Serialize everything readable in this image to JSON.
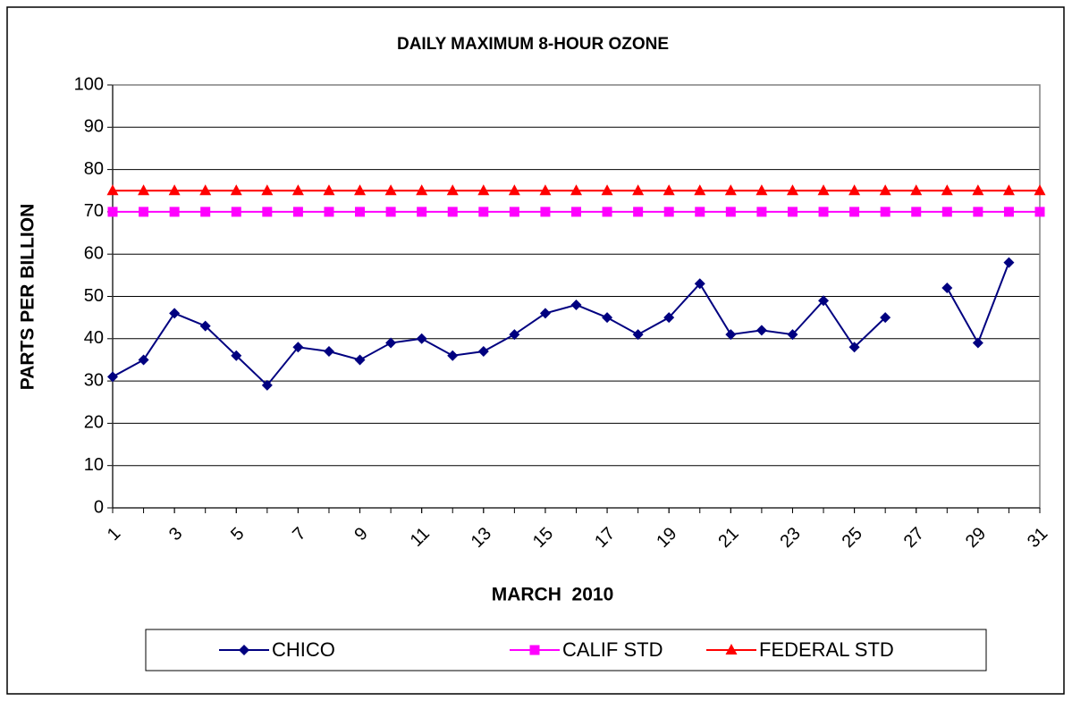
{
  "chart_data": {
    "type": "line",
    "title": "DAILY MAXIMUM 8-HOUR OZONE",
    "xlabel": "MARCH  2010",
    "ylabel": "PARTS PER BILLION",
    "x": [
      1,
      2,
      3,
      4,
      5,
      6,
      7,
      8,
      9,
      10,
      11,
      12,
      13,
      14,
      15,
      16,
      17,
      18,
      19,
      20,
      21,
      22,
      23,
      24,
      25,
      26,
      27,
      28,
      29,
      30,
      31
    ],
    "xlim": [
      1,
      31
    ],
    "xticks": [
      1,
      3,
      5,
      7,
      9,
      11,
      13,
      15,
      17,
      19,
      21,
      23,
      25,
      27,
      29,
      31
    ],
    "ylim": [
      0,
      100
    ],
    "yticks": [
      0,
      10,
      20,
      30,
      40,
      50,
      60,
      70,
      80,
      90,
      100
    ],
    "grid": true,
    "series": [
      {
        "name": "CHICO",
        "color": "#000080",
        "marker": "diamond",
        "values": [
          31,
          35,
          46,
          43,
          36,
          29,
          38,
          37,
          35,
          39,
          40,
          36,
          37,
          41,
          46,
          48,
          45,
          41,
          45,
          53,
          41,
          42,
          41,
          49,
          38,
          45,
          null,
          52,
          39,
          58,
          null
        ]
      },
      {
        "name": "CALIF STD",
        "color": "#ff00ff",
        "marker": "square",
        "values": [
          70,
          70,
          70,
          70,
          70,
          70,
          70,
          70,
          70,
          70,
          70,
          70,
          70,
          70,
          70,
          70,
          70,
          70,
          70,
          70,
          70,
          70,
          70,
          70,
          70,
          70,
          70,
          70,
          70,
          70,
          70
        ]
      },
      {
        "name": "FEDERAL STD",
        "color": "#ff0000",
        "marker": "triangle",
        "values": [
          75,
          75,
          75,
          75,
          75,
          75,
          75,
          75,
          75,
          75,
          75,
          75,
          75,
          75,
          75,
          75,
          75,
          75,
          75,
          75,
          75,
          75,
          75,
          75,
          75,
          75,
          75,
          75,
          75,
          75,
          75
        ]
      }
    ]
  }
}
